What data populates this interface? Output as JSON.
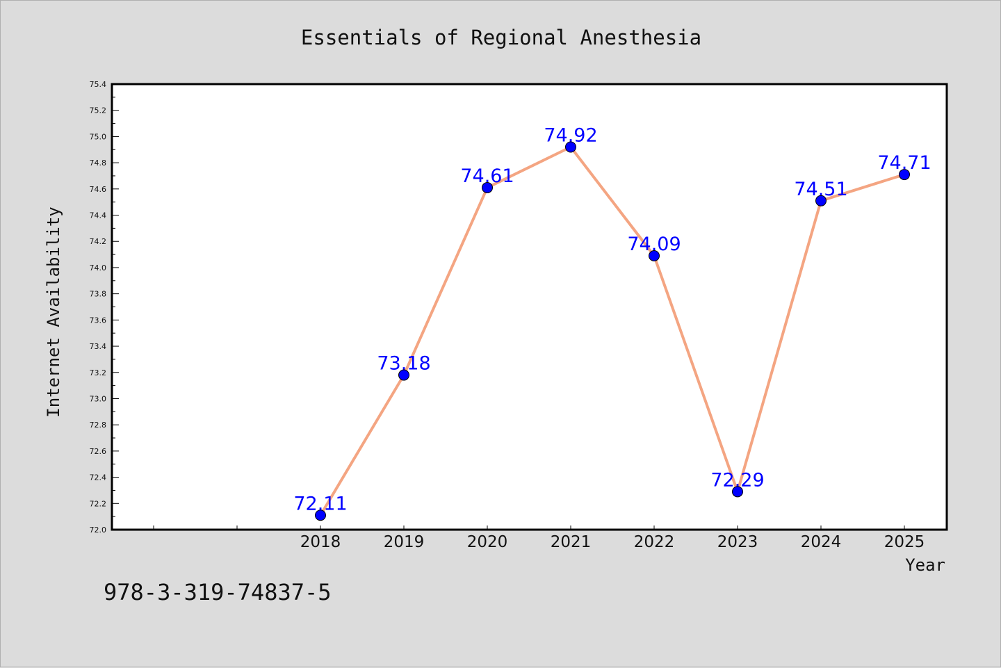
{
  "chart_data": {
    "type": "line",
    "title": "Essentials of Regional Anesthesia",
    "xlabel": "Year",
    "ylabel": "Internet Availability",
    "categories": [
      "2018",
      "2019",
      "2020",
      "2021",
      "2022",
      "2023",
      "2024",
      "2025"
    ],
    "x_extra_ticks": 2,
    "series": [
      {
        "values": [
          72.11,
          73.18,
          74.61,
          74.92,
          74.09,
          72.29,
          74.51,
          74.71
        ]
      }
    ],
    "data_labels": [
      "72.11",
      "73.18",
      "74.61",
      "74.92",
      "74.09",
      "72.29",
      "74.51",
      "74.71"
    ],
    "ylim": [
      72.0,
      75.4
    ],
    "yticks": [
      "72.0",
      "72.2",
      "72.4",
      "72.6",
      "72.8",
      "73.0",
      "73.2",
      "73.4",
      "73.6",
      "73.8",
      "74.0",
      "74.2",
      "74.4",
      "74.6",
      "74.8",
      "75.0",
      "75.2",
      "75.4"
    ],
    "grid": false,
    "line_color": "#f4a582",
    "marker_color": "#0000ff",
    "label_color": "#0000ff"
  },
  "footnote": "978-3-319-74837-5"
}
